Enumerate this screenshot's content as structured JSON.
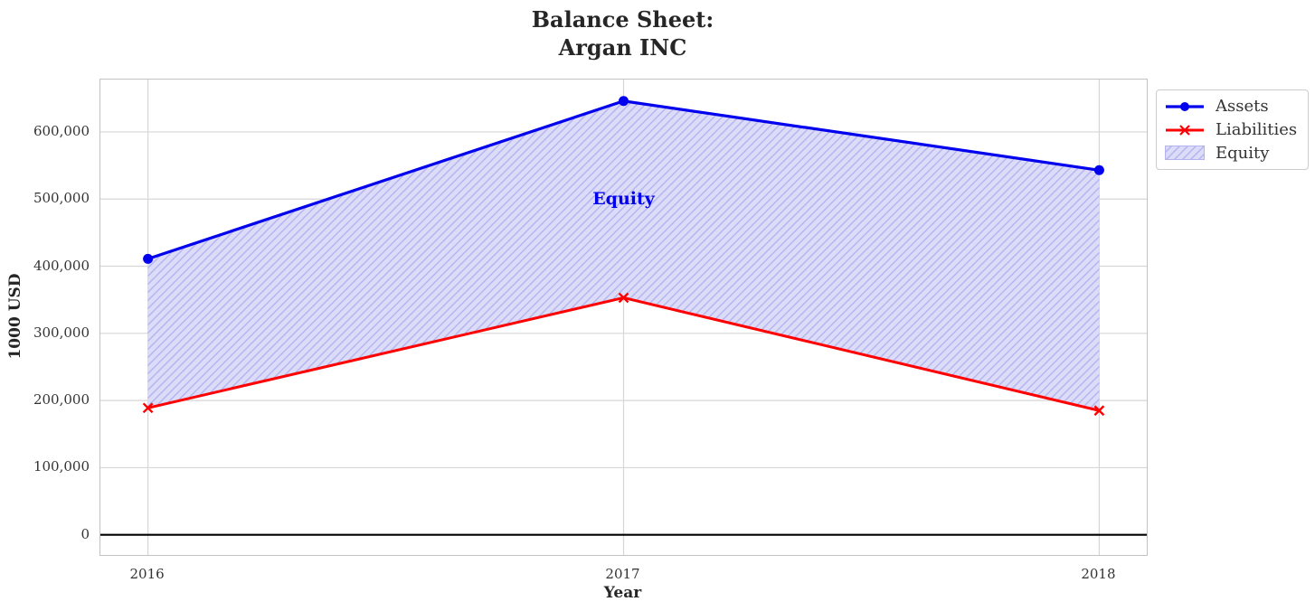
{
  "chart_data": {
    "type": "line",
    "title": "Balance Sheet:\nArgan INC",
    "xlabel": "Year",
    "ylabel": "1000 USD",
    "x": [
      2016,
      2017,
      2018
    ],
    "series": [
      {
        "name": "Assets",
        "color": "#0000ee",
        "marker": "circle",
        "line_width": 3.2,
        "values": [
          411000,
          646000,
          543000
        ]
      },
      {
        "name": "Liabilities",
        "color": "#ff0000",
        "marker": "x",
        "line_width": 3.0,
        "values": [
          189000,
          353000,
          185000
        ]
      }
    ],
    "fill_between": {
      "name": "Equity",
      "upper_series": "Assets",
      "lower_series": "Liabilities",
      "facecolor": "#dcdcf8",
      "hatch_color": "#b3b3f0",
      "hatch": "/"
    },
    "annotation": {
      "text": "Equity",
      "x": 2017,
      "y": 500000,
      "color": "#0000ee"
    },
    "xticks": [
      2016,
      2017,
      2018
    ],
    "xtick_labels": [
      "2016",
      "2017",
      "2018"
    ],
    "yticks": [
      0,
      100000,
      200000,
      300000,
      400000,
      500000,
      600000
    ],
    "ytick_labels": [
      "0",
      "100,000",
      "200,000",
      "300,000",
      "400,000",
      "500,000",
      "600,000"
    ],
    "xlim": [
      2015.9,
      2018.1
    ],
    "ylim": [
      -30000,
      678000
    ],
    "grid": true,
    "grid_color": "#d6d6d6",
    "zero_line": true,
    "zero_line_color": "#000000",
    "legend_position": "outside upper right"
  },
  "legend": {
    "entries": [
      {
        "label": "Assets",
        "swatch": "line-circle",
        "color": "#0000ee"
      },
      {
        "label": "Liabilities",
        "swatch": "line-x",
        "color": "#ff0000"
      },
      {
        "label": "Equity",
        "swatch": "hatch-patch",
        "color": "#dcdcf8"
      }
    ]
  }
}
